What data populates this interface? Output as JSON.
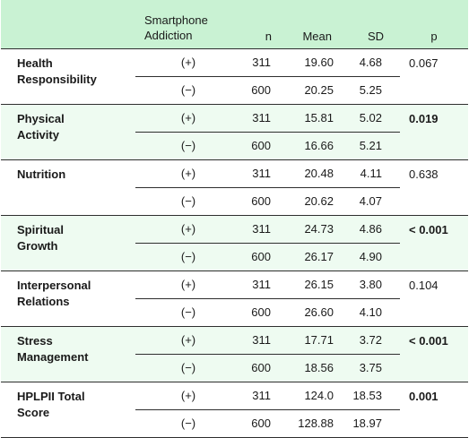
{
  "headers": {
    "smartphone_addiction": "Smartphone\nAddiction",
    "n": "n",
    "mean": "Mean",
    "sd": "SD",
    "p": "p"
  },
  "rows": [
    {
      "variable": "Health\nResponsibility",
      "p": "0.067",
      "p_bold": false,
      "groups": [
        {
          "label": "(+)",
          "n": "311",
          "mean": "19.60",
          "sd": "4.68"
        },
        {
          "label": "(−)",
          "n": "600",
          "mean": "20.25",
          "sd": "5.25"
        }
      ]
    },
    {
      "variable": "Physical\nActivity",
      "p": "0.019",
      "p_bold": true,
      "groups": [
        {
          "label": "(+)",
          "n": "311",
          "mean": "15.81",
          "sd": "5.02"
        },
        {
          "label": "(−)",
          "n": "600",
          "mean": "16.66",
          "sd": "5.21"
        }
      ]
    },
    {
      "variable": "Nutrition",
      "p": "0.638",
      "p_bold": false,
      "groups": [
        {
          "label": "(+)",
          "n": "311",
          "mean": "20.48",
          "sd": "4.11"
        },
        {
          "label": "(−)",
          "n": "600",
          "mean": "20.62",
          "sd": "4.07"
        }
      ]
    },
    {
      "variable": "Spiritual\nGrowth",
      "p": "< 0.001",
      "p_bold": true,
      "groups": [
        {
          "label": "(+)",
          "n": "311",
          "mean": "24.73",
          "sd": "4.86"
        },
        {
          "label": "(−)",
          "n": "600",
          "mean": "26.17",
          "sd": "4.90"
        }
      ]
    },
    {
      "variable": "Interpersonal\nRelations",
      "p": "0.104",
      "p_bold": false,
      "groups": [
        {
          "label": "(+)",
          "n": "311",
          "mean": "26.15",
          "sd": "3.80"
        },
        {
          "label": "(−)",
          "n": "600",
          "mean": "26.60",
          "sd": "4.10"
        }
      ]
    },
    {
      "variable": "Stress\nManagement",
      "p": "< 0.001",
      "p_bold": true,
      "groups": [
        {
          "label": "(+)",
          "n": "311",
          "mean": "17.71",
          "sd": "3.72"
        },
        {
          "label": "(−)",
          "n": "600",
          "mean": "18.56",
          "sd": "3.75"
        }
      ]
    },
    {
      "variable": "HPLPII Total\nScore",
      "p": "0.001",
      "p_bold": true,
      "groups": [
        {
          "label": "(+)",
          "n": "311",
          "mean": "124.0",
          "sd": "18.53"
        },
        {
          "label": "(−)",
          "n": "600",
          "mean": "128.88",
          "sd": "18.97"
        }
      ]
    }
  ],
  "colors": {
    "header_bg": "#c9f2d3",
    "alt_row_bg": "#eefbf1",
    "rule": "#2e2e2e"
  }
}
